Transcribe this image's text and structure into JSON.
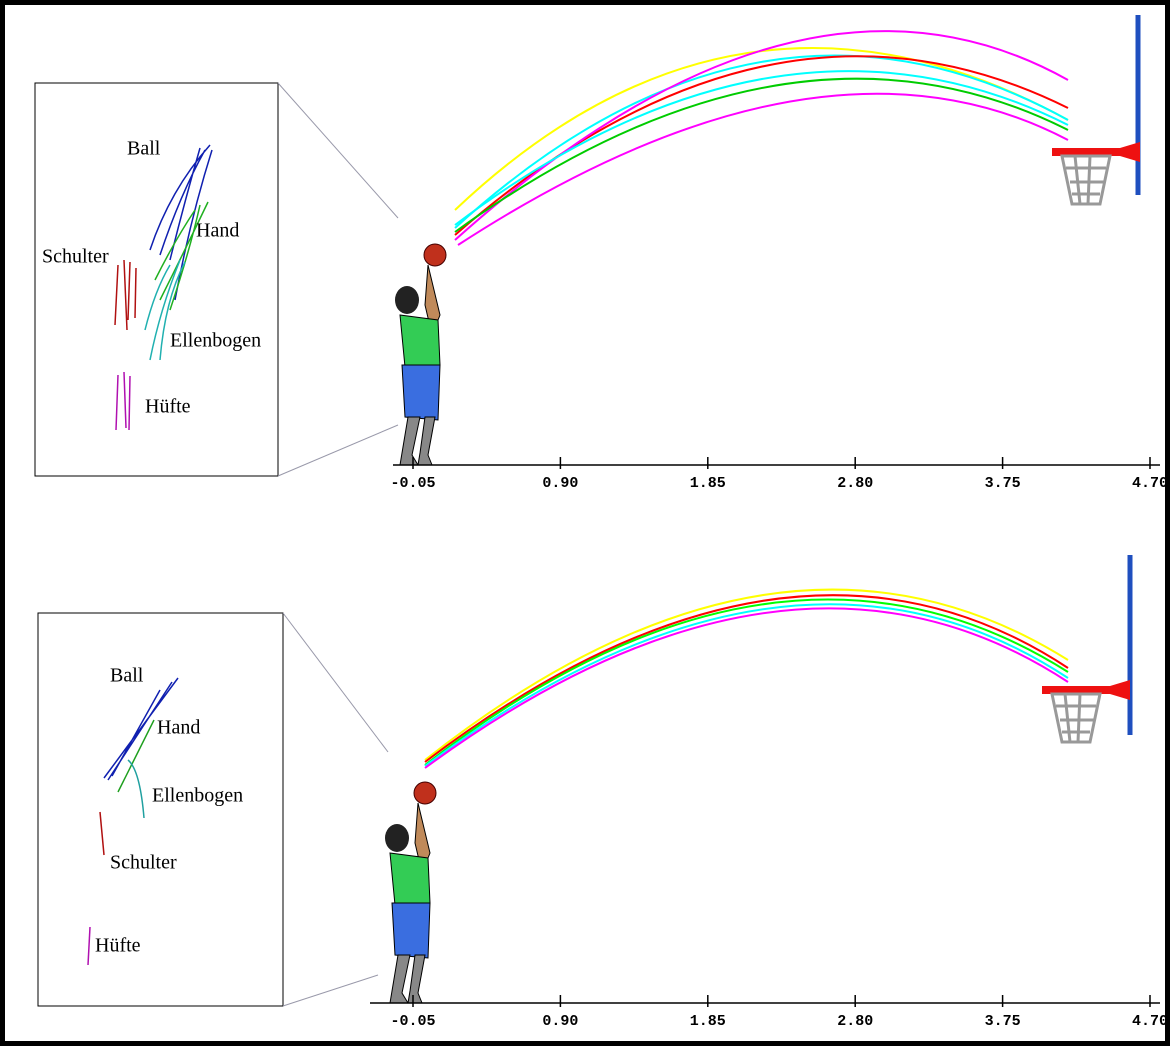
{
  "panels": [
    {
      "labels": [
        "Ball",
        "Hand",
        "Schulter",
        "Ellenbogen",
        "Hüfte"
      ],
      "axis": {
        "ticks": [
          -0.05,
          {
            "value": 0.9,
            "label": "0.90"
          },
          1.85,
          {
            "value": 2.8,
            "label": "2.80"
          },
          3.75,
          {
            "value": 4.7,
            "label": "4.70"
          }
        ]
      }
    },
    {
      "labels": [
        "Ball",
        "Hand",
        "Ellenbogen",
        "Schulter",
        "Hüfte"
      ],
      "axis": {
        "ticks": [
          -0.05,
          {
            "value": 0.9,
            "label": "0.90"
          },
          1.85,
          {
            "value": 2.8,
            "label": "2.80"
          },
          3.75,
          {
            "value": 4.7,
            "label": "4.70"
          }
        ]
      }
    }
  ]
}
